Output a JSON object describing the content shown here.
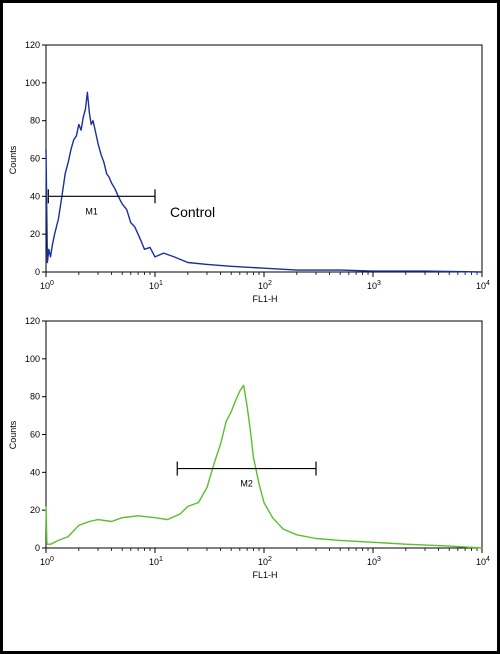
{
  "chart_data": [
    {
      "type": "line",
      "subtype": "flow-cytometry-histogram",
      "xlabel": "FL1-H",
      "ylabel": "Counts",
      "x_scale": "log",
      "xlim": [
        1,
        10000
      ],
      "ylim": [
        0,
        120
      ],
      "y_ticks": [
        0,
        20,
        40,
        60,
        80,
        100,
        120
      ],
      "x_ticks": [
        {
          "base": "10",
          "exp": "0",
          "value": 1
        },
        {
          "base": "10",
          "exp": "1",
          "value": 10
        },
        {
          "base": "10",
          "exp": "2",
          "value": 100
        },
        {
          "base": "10",
          "exp": "3",
          "value": 1000
        },
        {
          "base": "10",
          "exp": "4",
          "value": 10000
        }
      ],
      "annotation": "Control",
      "gate": {
        "label": "M1",
        "from": 1.05,
        "to": 10,
        "y": 40
      },
      "color": "#1a2f9e",
      "series": [
        {
          "x": [
            1.0,
            1.03,
            1.06,
            1.1,
            1.15,
            1.2,
            1.3,
            1.4,
            1.5,
            1.6,
            1.7,
            1.8,
            1.9,
            2.0,
            2.1,
            2.2,
            2.3,
            2.4,
            2.5,
            2.6,
            2.7,
            2.8,
            3.0,
            3.2,
            3.4,
            3.6,
            3.8,
            4.0,
            4.3,
            4.6,
            5.0,
            5.5,
            6.0,
            6.5,
            7.0,
            7.5,
            8.0,
            9.0,
            10,
            12,
            15,
            20,
            30,
            50,
            100,
            200,
            500,
            1000,
            3000,
            10000
          ],
          "y": [
            65,
            5,
            12,
            8,
            15,
            20,
            28,
            40,
            52,
            58,
            65,
            70,
            72,
            78,
            75,
            82,
            86,
            95,
            84,
            78,
            80,
            76,
            68,
            62,
            58,
            52,
            50,
            47,
            44,
            40,
            36,
            33,
            26,
            24,
            20,
            16,
            12,
            13,
            8,
            10,
            8,
            5,
            4,
            3,
            2,
            1,
            1,
            0.5,
            0.5,
            0
          ]
        }
      ]
    },
    {
      "type": "line",
      "subtype": "flow-cytometry-histogram",
      "xlabel": "FL1-H",
      "ylabel": "Counts",
      "x_scale": "log",
      "xlim": [
        1,
        10000
      ],
      "ylim": [
        0,
        120
      ],
      "y_ticks": [
        0,
        20,
        40,
        60,
        80,
        100,
        120
      ],
      "x_ticks": [
        {
          "base": "10",
          "exp": "0",
          "value": 1
        },
        {
          "base": "10",
          "exp": "1",
          "value": 10
        },
        {
          "base": "10",
          "exp": "2",
          "value": 100
        },
        {
          "base": "10",
          "exp": "3",
          "value": 1000
        },
        {
          "base": "10",
          "exp": "4",
          "value": 10000
        }
      ],
      "gate": {
        "label": "M2",
        "from": 16,
        "to": 300,
        "y": 42
      },
      "color": "#5cbf2a",
      "series": [
        {
          "x": [
            1.0,
            1.02,
            1.1,
            1.3,
            1.6,
            2.0,
            2.5,
            3.0,
            4.0,
            5.0,
            7.0,
            10,
            13,
            17,
            20,
            25,
            30,
            35,
            40,
            45,
            50,
            55,
            60,
            65,
            70,
            75,
            80,
            90,
            100,
            120,
            150,
            200,
            300,
            500,
            1000,
            2000,
            5000,
            10000
          ],
          "y": [
            22,
            2,
            2,
            4,
            6,
            12,
            14,
            15,
            14,
            16,
            17,
            16,
            15,
            18,
            22,
            24,
            32,
            45,
            55,
            67,
            72,
            78,
            83,
            86,
            75,
            62,
            48,
            34,
            24,
            16,
            10,
            7,
            5,
            4,
            3,
            2,
            1,
            0
          ]
        }
      ]
    }
  ]
}
